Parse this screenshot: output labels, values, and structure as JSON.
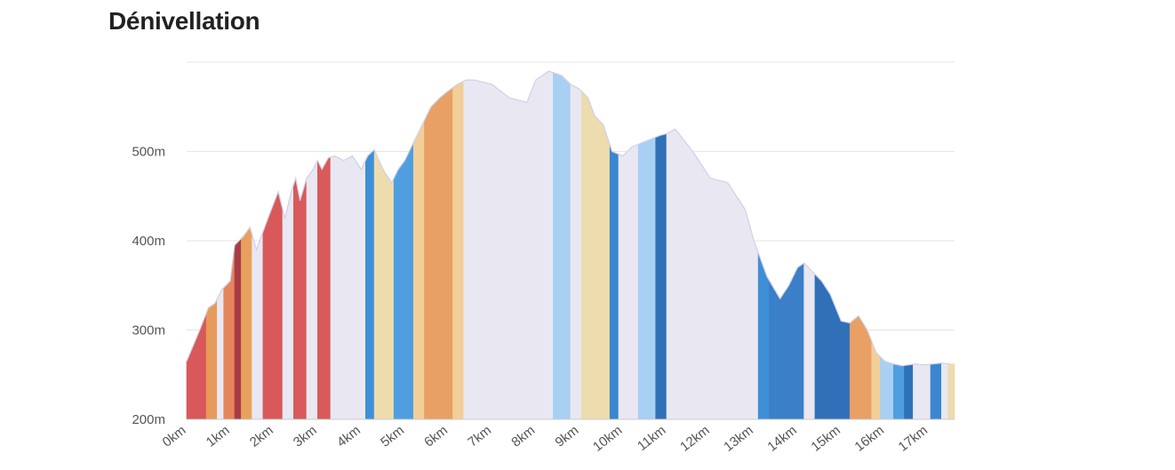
{
  "title": "Dénivellation",
  "chart_data": {
    "type": "area",
    "title": "Dénivellation",
    "xlabel": "",
    "ylabel": "",
    "xlim": [
      0,
      17.6
    ],
    "ylim": [
      200,
      600
    ],
    "y_ticks": [
      200,
      300,
      400,
      500
    ],
    "y_tick_labels": [
      "200m",
      "300m",
      "400m",
      "500m"
    ],
    "x_ticks": [
      0,
      1,
      2,
      3,
      4,
      5,
      6,
      7,
      8,
      9,
      10,
      11,
      12,
      13,
      14,
      15,
      16,
      17
    ],
    "x_tick_labels": [
      "0km",
      "1km",
      "2km",
      "3km",
      "4km",
      "5km",
      "6km",
      "7km",
      "8km",
      "9km",
      "10km",
      "11km",
      "12km",
      "13km",
      "14km",
      "15km",
      "16km",
      "17km"
    ],
    "grid": true,
    "elevation_profile": {
      "x": [
        0,
        0.3,
        0.5,
        0.65,
        0.8,
        1.0,
        1.1,
        1.3,
        1.45,
        1.6,
        1.75,
        1.9,
        2.1,
        2.25,
        2.4,
        2.5,
        2.6,
        2.75,
        2.9,
        3.0,
        3.1,
        3.25,
        3.4,
        3.6,
        3.8,
        4.0,
        4.15,
        4.3,
        4.5,
        4.7,
        4.85,
        5.0,
        5.2,
        5.4,
        5.6,
        5.8,
        6.0,
        6.2,
        6.4,
        6.6,
        7.0,
        7.4,
        7.8,
        8.0,
        8.3,
        8.6,
        8.8,
        9.0,
        9.2,
        9.35,
        9.55,
        9.75,
        10.0,
        10.2,
        10.45,
        10.7,
        10.85,
        11.0,
        11.2,
        11.6,
        12.0,
        12.4,
        12.8,
        13.0,
        13.3,
        13.6,
        13.8,
        14.0,
        14.15,
        14.35,
        14.55,
        14.75,
        15.0,
        15.2,
        15.4,
        15.6,
        15.8,
        16.0,
        16.2,
        16.4,
        16.55,
        16.7,
        16.9,
        17.1,
        17.3,
        17.5
      ],
      "y": [
        265,
        300,
        325,
        330,
        345,
        355,
        395,
        405,
        415,
        390,
        410,
        430,
        455,
        425,
        455,
        470,
        445,
        470,
        480,
        490,
        480,
        493,
        495,
        490,
        495,
        480,
        495,
        502,
        480,
        465,
        480,
        490,
        510,
        530,
        550,
        560,
        568,
        575,
        580,
        580,
        575,
        560,
        555,
        580,
        590,
        585,
        575,
        570,
        560,
        540,
        530,
        500,
        495,
        505,
        510,
        515,
        518,
        520,
        525,
        500,
        470,
        465,
        435,
        400,
        360,
        335,
        350,
        370,
        375,
        365,
        355,
        340,
        310,
        308,
        316,
        300,
        275,
        265,
        262,
        260,
        261,
        262,
        261,
        262,
        263,
        262
      ]
    },
    "slope_bands": [
      {
        "x0": 0.0,
        "x1": 0.45,
        "color": "#d9585a"
      },
      {
        "x0": 0.45,
        "x1": 0.7,
        "color": "#e69a5c"
      },
      {
        "x0": 0.7,
        "x1": 0.85,
        "color": "#e9e8f2"
      },
      {
        "x0": 0.85,
        "x1": 1.1,
        "color": "#e6855c"
      },
      {
        "x0": 1.1,
        "x1": 1.25,
        "color": "#a83c44"
      },
      {
        "x0": 1.25,
        "x1": 1.5,
        "color": "#e8a05e"
      },
      {
        "x0": 1.5,
        "x1": 1.75,
        "color": "#e9e8f2"
      },
      {
        "x0": 1.75,
        "x1": 2.2,
        "color": "#d9585a"
      },
      {
        "x0": 2.2,
        "x1": 2.45,
        "color": "#e9e8f2"
      },
      {
        "x0": 2.45,
        "x1": 2.75,
        "color": "#d95a5a"
      },
      {
        "x0": 2.75,
        "x1": 3.0,
        "color": "#e9e8f2"
      },
      {
        "x0": 3.0,
        "x1": 3.3,
        "color": "#d95a5a"
      },
      {
        "x0": 3.3,
        "x1": 4.1,
        "color": "#e9e8f2"
      },
      {
        "x0": 4.1,
        "x1": 4.3,
        "color": "#3f8fd6"
      },
      {
        "x0": 4.3,
        "x1": 4.75,
        "color": "#ecdcae"
      },
      {
        "x0": 4.75,
        "x1": 5.2,
        "color": "#4f9fe0"
      },
      {
        "x0": 5.2,
        "x1": 5.45,
        "color": "#f2cf98"
      },
      {
        "x0": 5.45,
        "x1": 6.1,
        "color": "#e8a064"
      },
      {
        "x0": 6.1,
        "x1": 6.35,
        "color": "#f2cf98"
      },
      {
        "x0": 6.35,
        "x1": 8.4,
        "color": "#e9e8f2"
      },
      {
        "x0": 8.4,
        "x1": 8.8,
        "color": "#a8d0f2"
      },
      {
        "x0": 8.8,
        "x1": 9.05,
        "color": "#e9e8f2"
      },
      {
        "x0": 9.05,
        "x1": 9.7,
        "color": "#ecdcae"
      },
      {
        "x0": 9.7,
        "x1": 9.9,
        "color": "#3a86cf"
      },
      {
        "x0": 9.9,
        "x1": 10.35,
        "color": "#e9e8f2"
      },
      {
        "x0": 10.35,
        "x1": 10.75,
        "color": "#a8d0f2"
      },
      {
        "x0": 10.75,
        "x1": 11.0,
        "color": "#2f70b8"
      },
      {
        "x0": 11.0,
        "x1": 13.1,
        "color": "#e9e8f2"
      },
      {
        "x0": 13.1,
        "x1": 13.35,
        "color": "#3f8fd6"
      },
      {
        "x0": 13.35,
        "x1": 14.15,
        "color": "#3a7fc8"
      },
      {
        "x0": 14.15,
        "x1": 14.4,
        "color": "#e9e8f2"
      },
      {
        "x0": 14.4,
        "x1": 15.2,
        "color": "#2f70b8"
      },
      {
        "x0": 15.2,
        "x1": 15.7,
        "color": "#e8a064"
      },
      {
        "x0": 15.7,
        "x1": 15.9,
        "color": "#f2cf98"
      },
      {
        "x0": 15.9,
        "x1": 16.2,
        "color": "#a8d0f2"
      },
      {
        "x0": 16.2,
        "x1": 16.45,
        "color": "#4f9fe0"
      },
      {
        "x0": 16.45,
        "x1": 16.65,
        "color": "#2f70b8"
      },
      {
        "x0": 16.65,
        "x1": 17.05,
        "color": "#e9e8f2"
      },
      {
        "x0": 17.05,
        "x1": 17.3,
        "color": "#3a86cf"
      },
      {
        "x0": 17.3,
        "x1": 17.45,
        "color": "#e9e8f2"
      },
      {
        "x0": 17.45,
        "x1": 17.6,
        "color": "#ecdcae"
      }
    ],
    "colors": {
      "steep_climb": "#d9585a",
      "climb": "#e8a064",
      "gentle_climb": "#ecdcae",
      "flat": "#e9e8f2",
      "gentle_descent": "#a8d0f2",
      "descent": "#4f9fe0",
      "steep_descent": "#2f70b8",
      "grid": "#e6e6e6",
      "axis": "#cccccc"
    }
  }
}
